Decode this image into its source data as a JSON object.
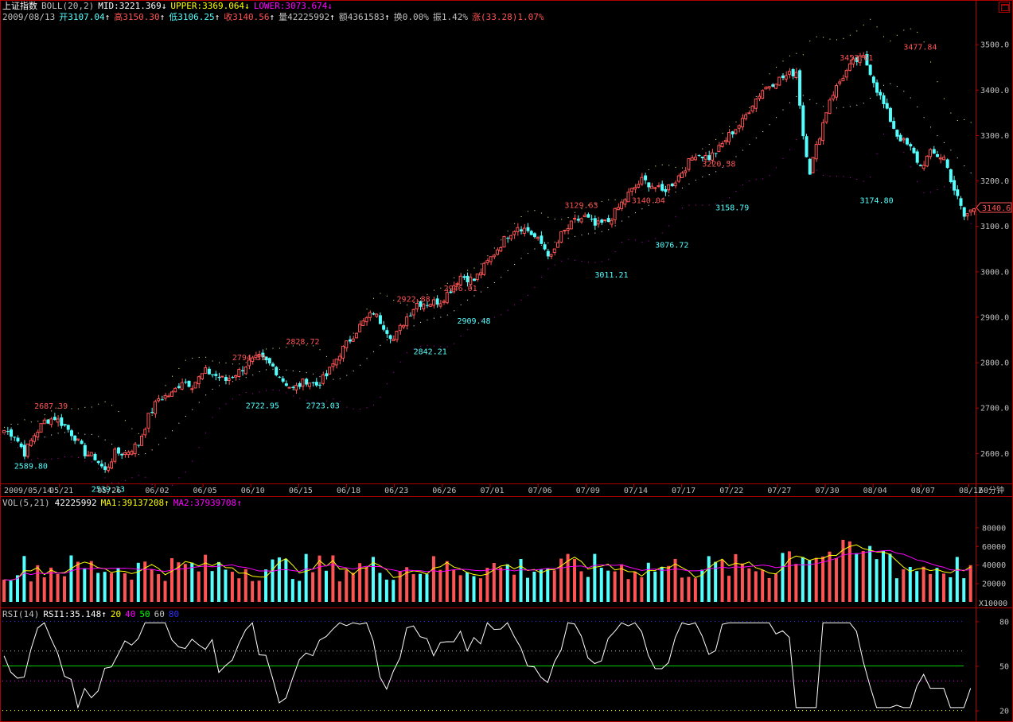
{
  "info": {
    "title": "上证指数",
    "indicator": "BOLL(20,2)",
    "mid": "MID:3221.369",
    "mid_arrow": "↓",
    "upper": "UPPER:3369.064",
    "upper_arrow": "↓",
    "lower": "LOWER:3073.674",
    "lower_arrow": "↓",
    "date": "2009/08/13",
    "open": "开3107.04",
    "open_arrow": "↑",
    "high": "高3150.30",
    "high_arrow": "↑",
    "low": "低3106.25",
    "low_arrow": "↑",
    "close": "收3140.56",
    "close_arrow": "↑",
    "volume": "量42225992",
    "volume_arrow": "↑",
    "amount": "额4361583",
    "amount_arrow": "↑",
    "turnover": "换0.00%",
    "amplitude": "振1.42%",
    "change": "涨(33.28)1.07%"
  },
  "vol_info": {
    "name": "VOL(5,21)",
    "value": "42225992",
    "ma1": "MA1:39137208",
    "ma1_arrow": "↑",
    "ma2": "MA2:37939708",
    "ma2_arrow": "↑"
  },
  "rsi_info": {
    "name": "RSI(14)",
    "rsi1": "RSI1:35.148",
    "rsi1_arrow": "↑",
    "l20": "20",
    "l40": "40",
    "l50": "50",
    "l60": "60",
    "l80": "80"
  },
  "period_label": "60分钟",
  "vol_unit": "X10000",
  "current_price": "3140.6",
  "colors": {
    "up": "#ff5454",
    "down": "#54ffff",
    "upper": "#ffff99",
    "lower": "#cc00cc",
    "mid": "#ffffff",
    "ma1": "#ffff00",
    "ma2": "#ff00ff",
    "rsi": "#ffffff",
    "rsi50": "#00cc00",
    "grid": "#b00000"
  },
  "chart_data": {
    "type": "candlestick",
    "x_tick_labels": [
      "2009/05/14",
      "05/21",
      "05/26",
      "06/02",
      "06/05",
      "06/10",
      "06/15",
      "06/18",
      "06/23",
      "06/26",
      "07/01",
      "07/06",
      "07/09",
      "07/14",
      "07/17",
      "07/22",
      "07/27",
      "07/30",
      "08/04",
      "08/07",
      "08/12"
    ],
    "price_axis": {
      "ticks": [
        "2600.0",
        "2700.0",
        "2800.0",
        "2900.0",
        "3000.0",
        "3100.0",
        "3200.0",
        "3300.0",
        "3400.0",
        "3500.0"
      ],
      "ylim": [
        2535,
        3545
      ]
    },
    "price_series": [
      {
        "x": 0,
        "close": 2650
      },
      {
        "x": 3,
        "close": 2640
      },
      {
        "x": 6,
        "close": 2600
      },
      {
        "x": 9,
        "close": 2640
      },
      {
        "x": 12,
        "close": 2670
      },
      {
        "x": 15,
        "close": 2678
      },
      {
        "x": 18,
        "close": 2660
      },
      {
        "x": 21,
        "close": 2635
      },
      {
        "x": 24,
        "close": 2600
      },
      {
        "x": 27,
        "close": 2590
      },
      {
        "x": 30,
        "close": 2560
      },
      {
        "x": 33,
        "close": 2600
      },
      {
        "x": 36,
        "close": 2600
      },
      {
        "x": 40,
        "close": 2620
      },
      {
        "x": 43,
        "close": 2680
      },
      {
        "x": 46,
        "close": 2720
      },
      {
        "x": 50,
        "close": 2730
      },
      {
        "x": 53,
        "close": 2760
      },
      {
        "x": 56,
        "close": 2750
      },
      {
        "x": 60,
        "close": 2780
      },
      {
        "x": 63,
        "close": 2770
      },
      {
        "x": 66,
        "close": 2760
      },
      {
        "x": 70,
        "close": 2780
      },
      {
        "x": 73,
        "close": 2800
      },
      {
        "x": 76,
        "close": 2810
      },
      {
        "x": 80,
        "close": 2790
      },
      {
        "x": 83,
        "close": 2760
      },
      {
        "x": 86,
        "close": 2740
      },
      {
        "x": 90,
        "close": 2760
      },
      {
        "x": 93,
        "close": 2750
      },
      {
        "x": 96,
        "close": 2770
      },
      {
        "x": 100,
        "close": 2820
      },
      {
        "x": 103,
        "close": 2850
      },
      {
        "x": 106,
        "close": 2880
      },
      {
        "x": 110,
        "close": 2910
      },
      {
        "x": 113,
        "close": 2880
      },
      {
        "x": 116,
        "close": 2850
      },
      {
        "x": 120,
        "close": 2900
      },
      {
        "x": 123,
        "close": 2930
      },
      {
        "x": 126,
        "close": 2930
      },
      {
        "x": 130,
        "close": 2935
      },
      {
        "x": 133,
        "close": 2960
      },
      {
        "x": 136,
        "close": 2990
      },
      {
        "x": 140,
        "close": 2980
      },
      {
        "x": 143,
        "close": 3010
      },
      {
        "x": 146,
        "close": 3040
      },
      {
        "x": 150,
        "close": 3080
      },
      {
        "x": 153,
        "close": 3100
      },
      {
        "x": 156,
        "close": 3090
      },
      {
        "x": 160,
        "close": 3060
      },
      {
        "x": 163,
        "close": 3030
      },
      {
        "x": 166,
        "close": 3080
      },
      {
        "x": 170,
        "close": 3110
      },
      {
        "x": 173,
        "close": 3120
      },
      {
        "x": 176,
        "close": 3100
      },
      {
        "x": 180,
        "close": 3110
      },
      {
        "x": 183,
        "close": 3140
      },
      {
        "x": 186,
        "close": 3170
      },
      {
        "x": 190,
        "close": 3200
      },
      {
        "x": 193,
        "close": 3190
      },
      {
        "x": 196,
        "close": 3175
      },
      {
        "x": 200,
        "close": 3200
      },
      {
        "x": 203,
        "close": 3230
      },
      {
        "x": 206,
        "close": 3260
      },
      {
        "x": 210,
        "close": 3250
      },
      {
        "x": 213,
        "close": 3270
      },
      {
        "x": 216,
        "close": 3300
      },
      {
        "x": 220,
        "close": 3330
      },
      {
        "x": 223,
        "close": 3370
      },
      {
        "x": 226,
        "close": 3400
      },
      {
        "x": 230,
        "close": 3420
      },
      {
        "x": 233,
        "close": 3430
      },
      {
        "x": 236,
        "close": 3440
      },
      {
        "x": 238,
        "close": 3300
      },
      {
        "x": 240,
        "close": 3220
      },
      {
        "x": 243,
        "close": 3300
      },
      {
        "x": 246,
        "close": 3380
      },
      {
        "x": 250,
        "close": 3430
      },
      {
        "x": 253,
        "close": 3460
      },
      {
        "x": 256,
        "close": 3470
      },
      {
        "x": 258,
        "close": 3440
      },
      {
        "x": 260,
        "close": 3400
      },
      {
        "x": 263,
        "close": 3350
      },
      {
        "x": 266,
        "close": 3300
      },
      {
        "x": 270,
        "close": 3270
      },
      {
        "x": 273,
        "close": 3230
      },
      {
        "x": 276,
        "close": 3260
      },
      {
        "x": 280,
        "close": 3250
      },
      {
        "x": 283,
        "close": 3180
      },
      {
        "x": 286,
        "close": 3120
      },
      {
        "x": 289,
        "close": 3140
      }
    ],
    "annotations": [
      {
        "label": "2687.39",
        "kind": "high",
        "x": 14,
        "y": 2687.39
      },
      {
        "label": "2589.80",
        "kind": "low",
        "x": 8,
        "y": 2589.8
      },
      {
        "label": "2539.13",
        "kind": "low",
        "x": 31,
        "y": 2539.13
      },
      {
        "label": "2794.39",
        "kind": "high",
        "x": 73,
        "y": 2794.39
      },
      {
        "label": "2722.95",
        "kind": "low",
        "x": 77,
        "y": 2722.95
      },
      {
        "label": "2828.72",
        "kind": "high",
        "x": 89,
        "y": 2828.72
      },
      {
        "label": "2723.03",
        "kind": "low",
        "x": 95,
        "y": 2723.03
      },
      {
        "label": "2922.88",
        "kind": "high",
        "x": 122,
        "y": 2922.88
      },
      {
        "label": "2842.21",
        "kind": "low",
        "x": 127,
        "y": 2842.21
      },
      {
        "label": "2946.01",
        "kind": "high",
        "x": 136,
        "y": 2946.01
      },
      {
        "label": "2909.48",
        "kind": "low",
        "x": 140,
        "y": 2909.48
      },
      {
        "label": "3129.63",
        "kind": "high",
        "x": 172,
        "y": 3129.63
      },
      {
        "label": "3011.21",
        "kind": "low",
        "x": 181,
        "y": 3011.21
      },
      {
        "label": "3140.04",
        "kind": "high",
        "x": 192,
        "y": 3140.04
      },
      {
        "label": "3076.72",
        "kind": "low",
        "x": 199,
        "y": 3076.72
      },
      {
        "label": "3220.58",
        "kind": "high",
        "x": 213,
        "y": 3220.58
      },
      {
        "label": "3158.79",
        "kind": "low",
        "x": 217,
        "y": 3158.79
      },
      {
        "label": "3453.61",
        "kind": "high",
        "x": 254,
        "y": 3453.61
      },
      {
        "label": "3174.80",
        "kind": "low",
        "x": 260,
        "y": 3174.8
      },
      {
        "label": "3477.84",
        "kind": "high",
        "x": 273,
        "y": 3477.84
      }
    ],
    "volume_axis": {
      "ticks": [
        "20000",
        "40000",
        "60000",
        "80000"
      ],
      "ylim": [
        0,
        100000
      ]
    },
    "rsi_axis": {
      "ticks": [
        "20",
        "50",
        "80"
      ],
      "ylim": [
        15,
        85
      ]
    }
  }
}
